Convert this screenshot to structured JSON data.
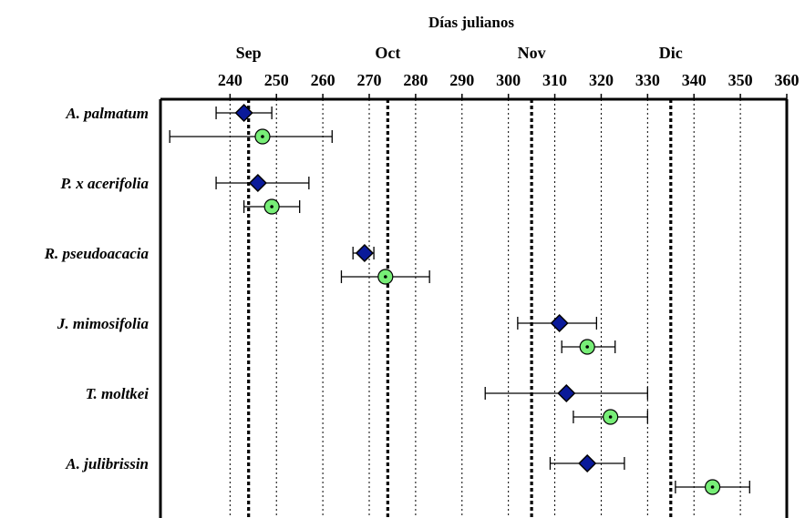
{
  "chart_data": {
    "type": "scatter",
    "title": "Días julianos",
    "xlabel": "",
    "ylabel": "",
    "xlim": [
      225,
      360
    ],
    "xticks": [
      240,
      250,
      260,
      270,
      280,
      290,
      300,
      310,
      320,
      330,
      340,
      350,
      360
    ],
    "grid": true,
    "month_labels": [
      {
        "label": "Sep",
        "x": 244
      },
      {
        "label": "Oct",
        "x": 274
      },
      {
        "label": "Nov",
        "x": 305
      },
      {
        "label": "Dic",
        "x": 335
      }
    ],
    "month_boundaries": [
      244,
      274,
      305,
      335
    ],
    "categories": [
      "A. palmatum",
      "P. x acerifolia",
      "R. pseudoacacia",
      "J. mimosifolia",
      "T. moltkei",
      "A. julibrissin"
    ],
    "series": [
      {
        "marker": "diamond",
        "color": "#0a1a9a",
        "points": [
          {
            "mean": 243,
            "low": 237,
            "high": 249
          },
          {
            "mean": 246,
            "low": 237,
            "high": 257
          },
          {
            "mean": 269,
            "low": 266.5,
            "high": 271
          },
          {
            "mean": 311,
            "low": 302,
            "high": 319
          },
          {
            "mean": 312.5,
            "low": 295,
            "high": 330
          },
          {
            "mean": 317,
            "low": 309,
            "high": 325
          }
        ]
      },
      {
        "marker": "circle",
        "color": "#77ee77",
        "points": [
          {
            "mean": 247,
            "low": 227,
            "high": 262
          },
          {
            "mean": 249,
            "low": 243,
            "high": 255
          },
          {
            "mean": 273.5,
            "low": 264,
            "high": 283
          },
          {
            "mean": 317,
            "low": 311.5,
            "high": 323
          },
          {
            "mean": 322,
            "low": 314,
            "high": 330
          },
          {
            "mean": 344,
            "low": 336,
            "high": 352
          }
        ]
      }
    ]
  }
}
